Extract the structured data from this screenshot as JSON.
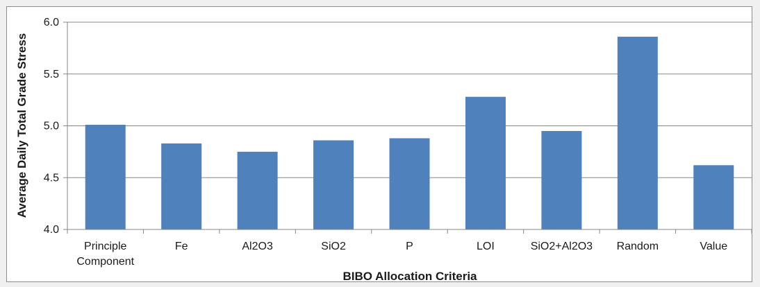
{
  "chart_data": {
    "type": "bar",
    "categories": [
      [
        "Principle",
        "Component"
      ],
      [
        "Fe"
      ],
      [
        "Al2O3"
      ],
      [
        "SiO2"
      ],
      [
        "P"
      ],
      [
        "LOI"
      ],
      [
        "SiO2+Al2O3"
      ],
      [
        "Random"
      ],
      [
        "Value"
      ]
    ],
    "values": [
      5.01,
      4.83,
      4.75,
      4.86,
      4.88,
      5.28,
      4.95,
      5.86,
      4.62
    ],
    "xlabel": "BIBO Allocation Criteria",
    "ylabel": "Average Daily Total Grade Stress",
    "ylim": [
      4.0,
      6.0
    ],
    "yticks": [
      "4.0",
      "4.5",
      "5.0",
      "5.5",
      "6.0"
    ],
    "grid": true,
    "legend": "none",
    "bar_color": "#4f81bd",
    "grid_color": "#878787",
    "axis_color": "#878787"
  }
}
